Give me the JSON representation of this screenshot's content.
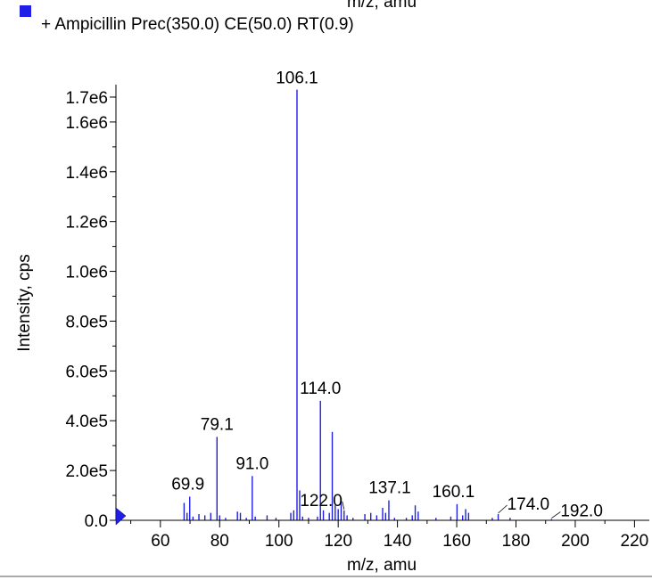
{
  "top_clipped_label": "m/z, amu",
  "legend": {
    "swatch_color": "#1f1fe6",
    "label": "+ Ampicillin Prec(350.0) CE(50.0) RT(0.9)"
  },
  "chart_data": {
    "type": "bar",
    "xlabel": "m/z, amu",
    "ylabel": "Intensity, cps",
    "xlim": [
      45,
      225
    ],
    "ylim": [
      0,
      1750000
    ],
    "x_ticks": [
      60,
      80,
      100,
      120,
      140,
      160,
      180,
      200,
      220
    ],
    "x_tick_labels": [
      "60",
      "80",
      "100",
      "120",
      "140",
      "160",
      "180",
      "200",
      "220"
    ],
    "y_ticks": [
      0,
      200000,
      400000,
      600000,
      800000,
      1000000,
      1200000,
      1400000,
      1600000,
      1700000
    ],
    "y_tick_labels": [
      "0.0",
      "2.0e5",
      "4.0e5",
      "6.0e5",
      "8.0e5",
      "1.0e6",
      "1.2e6",
      "1.4e6",
      "1.6e6",
      "1.7e6"
    ],
    "bar_color": "#1f1fe6",
    "grid": false,
    "legend_position": "top-left",
    "peaks": [
      {
        "x": 68.0,
        "y": 70000
      },
      {
        "x": 69.0,
        "y": 30000
      },
      {
        "x": 69.9,
        "y": 95000
      },
      {
        "x": 71.0,
        "y": 15000
      },
      {
        "x": 73.0,
        "y": 25000
      },
      {
        "x": 75.0,
        "y": 20000
      },
      {
        "x": 77.0,
        "y": 30000
      },
      {
        "x": 79.1,
        "y": 335000
      },
      {
        "x": 80.0,
        "y": 20000
      },
      {
        "x": 82.0,
        "y": 10000
      },
      {
        "x": 86.0,
        "y": 35000
      },
      {
        "x": 87.0,
        "y": 30000
      },
      {
        "x": 89.0,
        "y": 10000
      },
      {
        "x": 91.0,
        "y": 178000
      },
      {
        "x": 92.0,
        "y": 15000
      },
      {
        "x": 96.0,
        "y": 20000
      },
      {
        "x": 99.0,
        "y": 10000
      },
      {
        "x": 104.0,
        "y": 30000
      },
      {
        "x": 105.0,
        "y": 40000
      },
      {
        "x": 106.1,
        "y": 1730000
      },
      {
        "x": 107.0,
        "y": 120000
      },
      {
        "x": 108.0,
        "y": 15000
      },
      {
        "x": 110.0,
        "y": 10000
      },
      {
        "x": 113.0,
        "y": 15000
      },
      {
        "x": 114.0,
        "y": 480000
      },
      {
        "x": 115.0,
        "y": 40000
      },
      {
        "x": 117.0,
        "y": 30000
      },
      {
        "x": 118.0,
        "y": 355000
      },
      {
        "x": 119.0,
        "y": 60000
      },
      {
        "x": 120.0,
        "y": 45000
      },
      {
        "x": 121.0,
        "y": 90000
      },
      {
        "x": 122.0,
        "y": 40000
      },
      {
        "x": 123.0,
        "y": 20000
      },
      {
        "x": 125.0,
        "y": 10000
      },
      {
        "x": 129.0,
        "y": 25000
      },
      {
        "x": 131.0,
        "y": 30000
      },
      {
        "x": 133.0,
        "y": 20000
      },
      {
        "x": 135.0,
        "y": 50000
      },
      {
        "x": 136.0,
        "y": 30000
      },
      {
        "x": 137.1,
        "y": 80000
      },
      {
        "x": 139.0,
        "y": 10000
      },
      {
        "x": 143.0,
        "y": 10000
      },
      {
        "x": 145.0,
        "y": 20000
      },
      {
        "x": 146.0,
        "y": 60000
      },
      {
        "x": 147.0,
        "y": 35000
      },
      {
        "x": 153.0,
        "y": 10000
      },
      {
        "x": 158.0,
        "y": 15000
      },
      {
        "x": 160.1,
        "y": 65000
      },
      {
        "x": 162.0,
        "y": 20000
      },
      {
        "x": 163.0,
        "y": 45000
      },
      {
        "x": 164.0,
        "y": 30000
      },
      {
        "x": 172.0,
        "y": 10000
      },
      {
        "x": 174.0,
        "y": 25000
      },
      {
        "x": 178.0,
        "y": 10000
      },
      {
        "x": 192.0,
        "y": 5000
      }
    ],
    "annotations": [
      {
        "text": "106.1",
        "x": 106.1,
        "y": 1730000
      },
      {
        "text": "114.0",
        "x": 114.0,
        "y": 480000
      },
      {
        "text": "79.1",
        "x": 79.1,
        "y": 335000
      },
      {
        "text": "91.0",
        "x": 91.0,
        "y": 178000
      },
      {
        "text": "69.9",
        "x": 69.9,
        "y": 95000
      },
      {
        "text": "122.0",
        "x": 122.0,
        "y": 40000
      },
      {
        "text": "137.1",
        "x": 137.1,
        "y": 80000
      },
      {
        "text": "160.1",
        "x": 160.1,
        "y": 65000
      },
      {
        "text": "174.0",
        "x": 174.0,
        "y": 25000
      },
      {
        "text": "192.0",
        "x": 192.0,
        "y": 5000
      }
    ]
  }
}
